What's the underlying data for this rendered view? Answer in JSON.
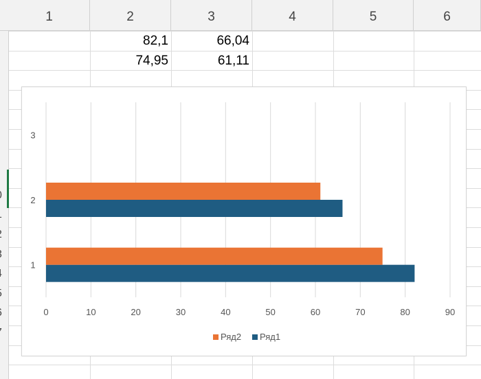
{
  "columns": [
    "1",
    "2",
    "3",
    "4",
    "5",
    "6"
  ],
  "rows": [
    "",
    "",
    "",
    "",
    "",
    "",
    "",
    "",
    "0",
    "1",
    "2",
    "3",
    "4",
    "5",
    "6",
    "7",
    ""
  ],
  "cells": [
    {
      "row": 1,
      "col": 2,
      "value": "82,1"
    },
    {
      "row": 1,
      "col": 3,
      "value": "66,04"
    },
    {
      "row": 2,
      "col": 2,
      "value": "74,95"
    },
    {
      "row": 2,
      "col": 3,
      "value": "61,11"
    }
  ],
  "colors": {
    "series1": "#1f5c82",
    "series2": "#ea7434",
    "selected_row_marker": "#1f7a44"
  },
  "chart_data": {
    "type": "bar",
    "orientation": "horizontal",
    "categories": [
      "1",
      "2",
      "3"
    ],
    "series": [
      {
        "name": "Ряд1",
        "values": [
          82.1,
          66.04,
          null
        ],
        "color": "#1f5c82"
      },
      {
        "name": "Ряд2",
        "values": [
          74.95,
          61.11,
          null
        ],
        "color": "#ea7434"
      }
    ],
    "x_ticks": [
      "0",
      "10",
      "20",
      "30",
      "40",
      "50",
      "60",
      "70",
      "80",
      "90"
    ],
    "xlim": [
      0,
      90
    ],
    "grid": "vertical",
    "legend": [
      "Ряд2",
      "Ряд1"
    ],
    "legend_position": "bottom"
  }
}
